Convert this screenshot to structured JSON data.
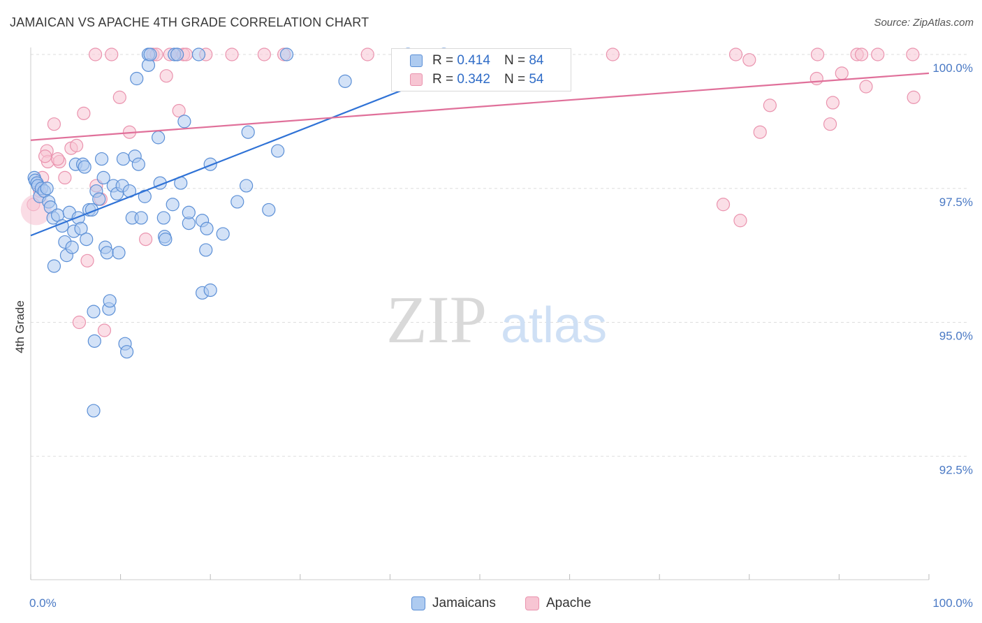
{
  "header": {
    "title": "JAMAICAN VS APACHE 4TH GRADE CORRELATION CHART",
    "source": "Source: ZipAtlas.com"
  },
  "watermark": {
    "zip": "ZIP",
    "atlas": "atlas"
  },
  "legend": {
    "jamaicans": {
      "r_label": "R =",
      "r_value": "0.414",
      "n_label": "N =",
      "n_value": "84"
    },
    "apache": {
      "r_label": "R =",
      "r_value": "0.342",
      "n_label": "N =",
      "n_value": "54"
    }
  },
  "bottom_legend": {
    "jamaicans": "Jamaicans",
    "apache": "Apache"
  },
  "colors": {
    "jamaicans_fill": "#aecbf0",
    "jamaicans_stroke": "#5b8fd6",
    "jamaicans_line": "#2f72d6",
    "apache_fill": "#f7c5d3",
    "apache_stroke": "#ea93ae",
    "apache_line": "#e0709a",
    "tick_text": "#4a79c4",
    "grid": "#dddddd"
  },
  "chart_data": {
    "type": "scatter",
    "ylabel": "4th Grade",
    "xlim": [
      0,
      100
    ],
    "ylim": [
      90.0,
      100.0
    ],
    "x_tick_labels": [
      "0.0%",
      "100.0%"
    ],
    "y_ticks": [
      {
        "value": 100.0,
        "label": "100.0%"
      },
      {
        "value": 97.5,
        "label": "97.5%"
      },
      {
        "value": 95.0,
        "label": "95.0%"
      },
      {
        "value": 92.5,
        "label": "92.5%"
      }
    ],
    "series": [
      {
        "name": "Jamaicans",
        "r": 0.414,
        "n": 84,
        "trend": [
          [
            0,
            96.62
          ],
          [
            50,
            99.9
          ]
        ],
        "points": [
          [
            0.4,
            97.7
          ],
          [
            0.5,
            97.65
          ],
          [
            0.7,
            97.6
          ],
          [
            0.8,
            97.55
          ],
          [
            1.0,
            97.35
          ],
          [
            1.2,
            97.5
          ],
          [
            1.5,
            97.45
          ],
          [
            1.8,
            97.5
          ],
          [
            2.0,
            97.25
          ],
          [
            2.2,
            97.15
          ],
          [
            2.5,
            96.95
          ],
          [
            2.6,
            96.05
          ],
          [
            3.0,
            97.0
          ],
          [
            3.5,
            96.8
          ],
          [
            3.8,
            96.5
          ],
          [
            4.0,
            96.25
          ],
          [
            4.3,
            97.05
          ],
          [
            4.6,
            96.4
          ],
          [
            4.8,
            96.7
          ],
          [
            5.0,
            97.95
          ],
          [
            5.3,
            96.95
          ],
          [
            5.6,
            96.75
          ],
          [
            5.8,
            97.95
          ],
          [
            6.0,
            97.9
          ],
          [
            6.2,
            96.55
          ],
          [
            6.5,
            97.1
          ],
          [
            6.8,
            97.1
          ],
          [
            7.0,
            95.2
          ],
          [
            7.1,
            94.65
          ],
          [
            7.3,
            97.45
          ],
          [
            7.6,
            97.3
          ],
          [
            7.9,
            98.05
          ],
          [
            8.1,
            97.7
          ],
          [
            8.3,
            96.4
          ],
          [
            8.5,
            96.3
          ],
          [
            8.7,
            95.25
          ],
          [
            8.8,
            95.4
          ],
          [
            9.2,
            97.55
          ],
          [
            9.6,
            97.4
          ],
          [
            9.8,
            96.3
          ],
          [
            10.2,
            97.55
          ],
          [
            10.3,
            98.05
          ],
          [
            10.5,
            94.6
          ],
          [
            10.7,
            94.45
          ],
          [
            11.0,
            97.45
          ],
          [
            11.3,
            96.95
          ],
          [
            11.6,
            98.1
          ],
          [
            11.8,
            99.55
          ],
          [
            12.0,
            97.95
          ],
          [
            12.3,
            96.95
          ],
          [
            12.7,
            97.35
          ],
          [
            13.1,
            100.0
          ],
          [
            13.1,
            99.8
          ],
          [
            13.3,
            100.0
          ],
          [
            14.2,
            98.45
          ],
          [
            14.4,
            97.6
          ],
          [
            14.8,
            96.95
          ],
          [
            14.9,
            96.6
          ],
          [
            15.0,
            96.55
          ],
          [
            15.8,
            97.2
          ],
          [
            16.0,
            100.0
          ],
          [
            16.3,
            100.0
          ],
          [
            16.7,
            97.6
          ],
          [
            17.1,
            98.75
          ],
          [
            17.6,
            96.85
          ],
          [
            17.6,
            97.05
          ],
          [
            18.7,
            100.0
          ],
          [
            19.1,
            96.9
          ],
          [
            19.1,
            95.55
          ],
          [
            19.5,
            96.35
          ],
          [
            19.6,
            96.75
          ],
          [
            20.0,
            97.95
          ],
          [
            20.0,
            95.6
          ],
          [
            21.4,
            96.65
          ],
          [
            23.0,
            97.25
          ],
          [
            24.0,
            97.55
          ],
          [
            24.2,
            98.55
          ],
          [
            26.5,
            97.1
          ],
          [
            27.5,
            98.2
          ],
          [
            28.5,
            100.0
          ],
          [
            35.0,
            99.5
          ],
          [
            42.0,
            100.0
          ],
          [
            46.0,
            100.0
          ],
          [
            7.0,
            93.35
          ]
        ]
      },
      {
        "name": "Apache",
        "r": 0.342,
        "n": 54,
        "trend": [
          [
            0,
            98.4
          ],
          [
            100,
            99.65
          ]
        ],
        "points": [
          [
            0.3,
            97.2
          ],
          [
            1.0,
            97.45
          ],
          [
            1.3,
            97.7
          ],
          [
            1.8,
            98.2
          ],
          [
            1.9,
            98.0
          ],
          [
            2.6,
            98.7
          ],
          [
            3.2,
            98.0
          ],
          [
            3.8,
            97.7
          ],
          [
            4.5,
            98.25
          ],
          [
            5.1,
            98.3
          ],
          [
            5.4,
            95.0
          ],
          [
            5.9,
            98.9
          ],
          [
            6.3,
            96.15
          ],
          [
            7.2,
            100.0
          ],
          [
            7.3,
            97.55
          ],
          [
            7.8,
            97.3
          ],
          [
            8.2,
            94.85
          ],
          [
            9.0,
            100.0
          ],
          [
            9.9,
            99.2
          ],
          [
            11.0,
            98.55
          ],
          [
            12.8,
            96.55
          ],
          [
            13.6,
            100.0
          ],
          [
            14.0,
            100.0
          ],
          [
            15.1,
            99.6
          ],
          [
            15.5,
            100.0
          ],
          [
            16.3,
            100.0
          ],
          [
            16.5,
            98.95
          ],
          [
            17.0,
            100.0
          ],
          [
            17.3,
            100.0
          ],
          [
            19.5,
            100.0
          ],
          [
            22.4,
            100.0
          ],
          [
            26.0,
            100.0
          ],
          [
            28.2,
            100.0
          ],
          [
            37.5,
            100.0
          ],
          [
            64.8,
            100.0
          ],
          [
            77.1,
            97.2
          ],
          [
            78.5,
            100.0
          ],
          [
            79.0,
            96.9
          ],
          [
            80.0,
            99.9
          ],
          [
            81.2,
            98.55
          ],
          [
            82.3,
            99.05
          ],
          [
            87.5,
            99.55
          ],
          [
            87.6,
            100.0
          ],
          [
            89.0,
            98.7
          ],
          [
            89.3,
            99.1
          ],
          [
            90.3,
            99.65
          ],
          [
            92.0,
            100.0
          ],
          [
            92.5,
            100.0
          ],
          [
            93.0,
            99.4
          ],
          [
            94.3,
            100.0
          ],
          [
            98.2,
            100.0
          ],
          [
            98.3,
            99.2
          ],
          [
            1.6,
            98.1
          ],
          [
            3.0,
            98.05
          ]
        ]
      }
    ]
  }
}
